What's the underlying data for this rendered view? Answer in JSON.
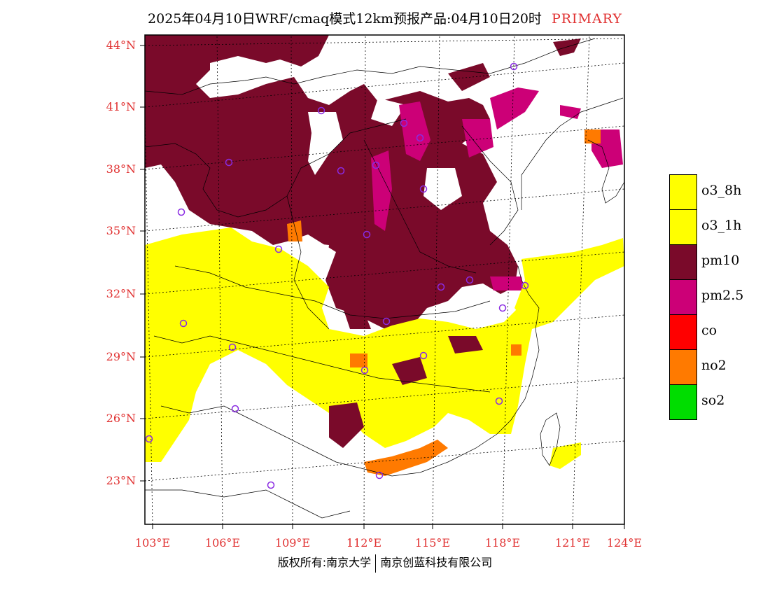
{
  "header": {
    "title": "2025年04月10日WRF/cmaq模式12km预报产品:04月10日20时",
    "badge": "PRIMARY"
  },
  "axes": {
    "lat_labels": [
      "44°N",
      "41°N",
      "38°N",
      "35°N",
      "32°N",
      "29°N",
      "26°N",
      "23°N"
    ],
    "lon_labels": [
      "103°E",
      "106°E",
      "109°E",
      "112°E",
      "115°E",
      "118°E",
      "121°E",
      "124°E"
    ]
  },
  "legend": [
    {
      "label": "o3_8h",
      "color": "#ffff00"
    },
    {
      "label": "o3_1h",
      "color": "#ffff00"
    },
    {
      "label": "pm10",
      "color": "#7a0a2a"
    },
    {
      "label": "pm2.5",
      "color": "#cc0077"
    },
    {
      "label": "co",
      "color": "#ff0000"
    },
    {
      "label": "no2",
      "color": "#ff7a00"
    },
    {
      "label": "so2",
      "color": "#00dd00"
    }
  ],
  "footer": {
    "left": "版权所有:南京大学",
    "right": "南京创蓝科技有限公司"
  },
  "colors": {
    "accent": "#e03030",
    "o3": "#ffff00",
    "pm10": "#7a0a2a",
    "pm25": "#cc0077",
    "no2": "#ff7a00",
    "station_marker": "#8a2be2"
  }
}
